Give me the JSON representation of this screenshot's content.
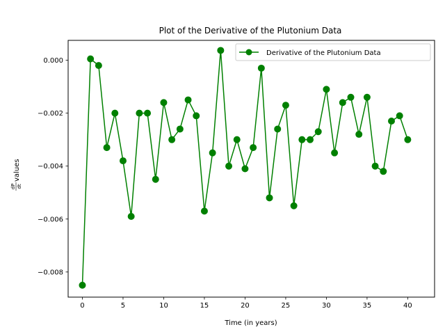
{
  "chart_data": {
    "type": "line",
    "title": "Plot of the Derivative of the Plutonium Data",
    "xlabel": "Time (in years)",
    "ylabel": {
      "frac_num": "dP",
      "frac_den": "dt",
      "suffix": " values"
    },
    "xlim": [
      -1.75,
      43.3
    ],
    "ylim": [
      -0.00895,
      0.00075
    ],
    "xticks": [
      0,
      5,
      10,
      15,
      20,
      25,
      30,
      35,
      40
    ],
    "xtick_labels": [
      "0",
      "5",
      "10",
      "15",
      "20",
      "25",
      "30",
      "35",
      "40"
    ],
    "yticks": [
      -0.008,
      -0.006,
      -0.004,
      -0.002,
      0.0
    ],
    "ytick_labels": [
      "−0.008",
      "−0.006",
      "−0.004",
      "−0.002",
      "0.000"
    ],
    "legend_position": "top-right",
    "grid": false,
    "series": [
      {
        "name": "Derivative of the Plutonium Data",
        "color": "#008000",
        "marker": "circle",
        "x": [
          0,
          1,
          2,
          3,
          4,
          5,
          6,
          7,
          8,
          9,
          10,
          11,
          12,
          13,
          14,
          15,
          16,
          17,
          18,
          19,
          20,
          21,
          22,
          23,
          24,
          25,
          26,
          27,
          28,
          29,
          30,
          31,
          32,
          33,
          34,
          35,
          36,
          37,
          38,
          39,
          40
        ],
        "y": [
          -0.0085,
          5e-05,
          -0.0002,
          -0.0033,
          -0.002,
          -0.0038,
          -0.0059,
          -0.002,
          -0.002,
          -0.0045,
          -0.0016,
          -0.003,
          -0.0026,
          -0.0015,
          -0.0021,
          -0.0057,
          -0.0035,
          0.00037,
          -0.004,
          -0.003,
          -0.0041,
          -0.0033,
          -0.0003,
          -0.0052,
          -0.0026,
          -0.0017,
          -0.0055,
          -0.003,
          -0.003,
          -0.0027,
          -0.0011,
          -0.0035,
          -0.0016,
          -0.0014,
          -0.0028,
          -0.0014,
          -0.004,
          -0.0042,
          -0.0023,
          -0.0021,
          -0.003
        ]
      }
    ]
  }
}
